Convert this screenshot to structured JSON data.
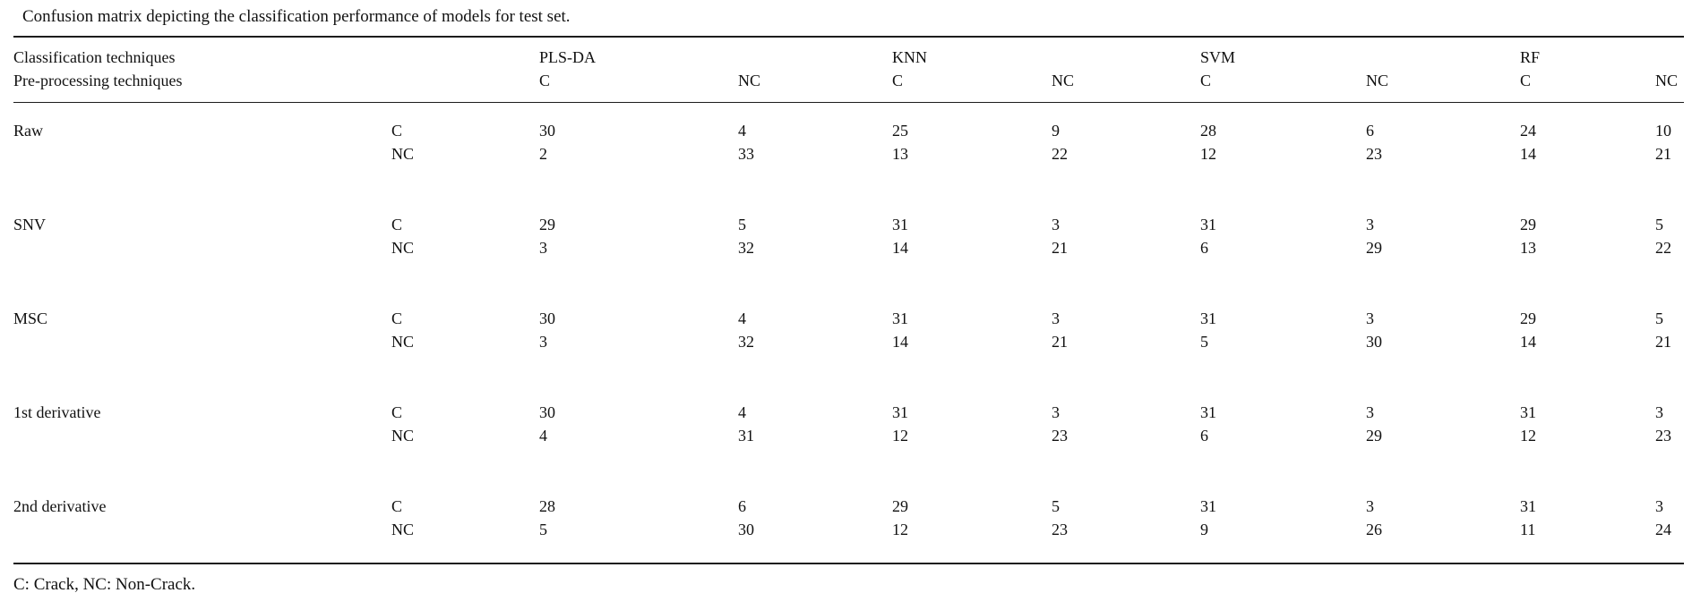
{
  "caption": "Confusion matrix depicting the classification performance of models for test set.",
  "footnote": "C: Crack, NC: Non-Crack.",
  "colors": {
    "background": "#ffffff",
    "text": "#111111",
    "rule": "#1c1c1c"
  },
  "table": {
    "header": {
      "row1_label": "Classification techniques",
      "row2_label": "Pre-processing techniques",
      "models": [
        "PLS-DA",
        "KNN",
        "SVM",
        "RF"
      ],
      "sub_columns": [
        "C",
        "NC"
      ]
    },
    "groups": [
      {
        "label": "Raw",
        "rows": [
          {
            "label": "C",
            "values": [
              30,
              4,
              25,
              9,
              28,
              6,
              24,
              10
            ]
          },
          {
            "label": "NC",
            "values": [
              2,
              33,
              13,
              22,
              12,
              23,
              14,
              21
            ]
          }
        ]
      },
      {
        "label": "SNV",
        "rows": [
          {
            "label": "C",
            "values": [
              29,
              5,
              31,
              3,
              31,
              3,
              29,
              5
            ]
          },
          {
            "label": "NC",
            "values": [
              3,
              32,
              14,
              21,
              6,
              29,
              13,
              22
            ]
          }
        ]
      },
      {
        "label": "MSC",
        "rows": [
          {
            "label": "C",
            "values": [
              30,
              4,
              31,
              3,
              31,
              3,
              29,
              5
            ]
          },
          {
            "label": "NC",
            "values": [
              3,
              32,
              14,
              21,
              5,
              30,
              14,
              21
            ]
          }
        ]
      },
      {
        "label": "1st derivative",
        "rows": [
          {
            "label": "C",
            "values": [
              30,
              4,
              31,
              3,
              31,
              3,
              31,
              3
            ]
          },
          {
            "label": "NC",
            "values": [
              4,
              31,
              12,
              23,
              6,
              29,
              12,
              23
            ]
          }
        ]
      },
      {
        "label": "2nd derivative",
        "rows": [
          {
            "label": "C",
            "values": [
              28,
              6,
              29,
              5,
              31,
              3,
              31,
              3
            ]
          },
          {
            "label": "NC",
            "values": [
              5,
              30,
              12,
              23,
              9,
              26,
              11,
              24
            ]
          }
        ]
      }
    ]
  }
}
